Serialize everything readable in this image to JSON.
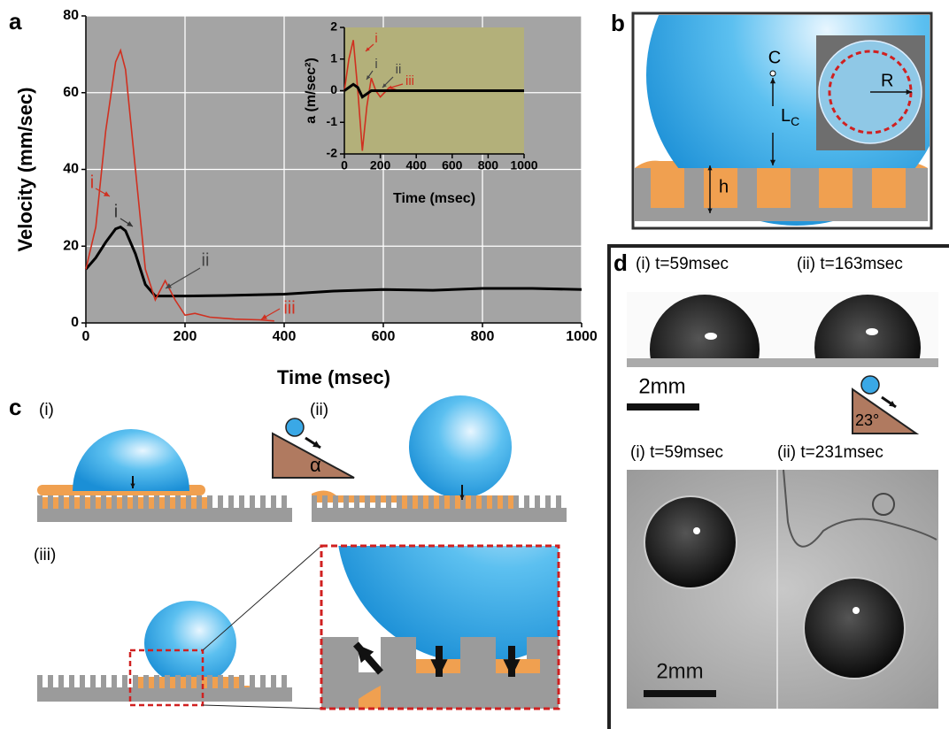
{
  "chart_data": [
    {
      "type": "line",
      "panel": "a",
      "xlabel": "Time (msec)",
      "ylabel": "Velocity (mm/sec)",
      "xlim": [
        0,
        1000
      ],
      "xticks": [
        0,
        200,
        400,
        600,
        800,
        1000
      ],
      "ylim": [
        0,
        80
      ],
      "yticks": [
        0,
        20,
        40,
        60,
        80
      ],
      "grid": true,
      "plot_background": "#a4a4a4",
      "series": [
        {
          "color": "#000000",
          "x": [
            0,
            20,
            40,
            60,
            70,
            80,
            100,
            120,
            140,
            160,
            180,
            200,
            300,
            400,
            500,
            600,
            700,
            800,
            900,
            1000
          ],
          "values": [
            14,
            17,
            21,
            24.5,
            25,
            24,
            18,
            10,
            7,
            7,
            7,
            7,
            7.2,
            7.5,
            8.3,
            8.7,
            8.5,
            9,
            9,
            8.7
          ]
        },
        {
          "color": "#d03020",
          "x": [
            0,
            20,
            40,
            60,
            70,
            80,
            100,
            120,
            140,
            160,
            180,
            200,
            220,
            250,
            300,
            350,
            380
          ],
          "values": [
            14,
            25,
            50,
            68,
            71,
            66,
            40,
            14,
            6,
            11,
            6,
            2,
            2.5,
            1.5,
            1,
            0.8,
            0.5
          ]
        }
      ],
      "annotations": [
        {
          "text": "i",
          "color": "#d03020"
        },
        {
          "text": "i",
          "color": "#333333"
        },
        {
          "text": "ii",
          "color": "#444444"
        },
        {
          "text": "iii",
          "color": "#d03020"
        }
      ]
    },
    {
      "type": "line",
      "xlabel": "Time (msec)",
      "ylabel": "a (m/sec²)",
      "xlim": [
        0,
        1000
      ],
      "xticks": [
        0,
        200,
        400,
        600,
        800,
        1000
      ],
      "ylim": [
        -2,
        2
      ],
      "yticks": [
        -2,
        -1,
        0,
        1,
        2
      ],
      "grid": false,
      "plot_background": "#b3b07a",
      "series": [
        {
          "color": "#d03020",
          "x": [
            0,
            25,
            50,
            75,
            100,
            125,
            150,
            175,
            200,
            250,
            300,
            400
          ],
          "values": [
            0,
            1,
            1.6,
            0,
            -1.9,
            -0.5,
            0.4,
            0,
            -0.2,
            0.1,
            0,
            0
          ]
        },
        {
          "color": "#000000",
          "x": [
            0,
            25,
            50,
            75,
            100,
            125,
            150,
            200,
            300,
            400,
            600,
            800,
            1000
          ],
          "values": [
            0,
            0.1,
            0.2,
            0.1,
            -0.2,
            -0.1,
            0,
            0,
            0,
            0,
            0,
            0,
            0
          ]
        }
      ],
      "annotations": [
        {
          "text": "i",
          "color": "#d03020"
        },
        {
          "text": "i",
          "color": "#444444"
        },
        {
          "text": "ii",
          "color": "#444444"
        },
        {
          "text": "iii",
          "color": "#d03020"
        }
      ]
    }
  ],
  "panels": {
    "b": {
      "label": "b",
      "center": "C",
      "length": "L",
      "length_sub": "C",
      "height": "h",
      "radius": "R"
    },
    "c": {
      "label": "c",
      "i": "(i)",
      "ii": "(ii)",
      "iii": "(iii)",
      "angle": "α"
    },
    "d": {
      "label": "d",
      "top_left": "(i) t=59msec",
      "top_right": "(ii) t=163msec",
      "scale_top": "2mm",
      "angle": "23°",
      "bottom_left": "(i) t=59msec",
      "bottom_right": "(ii) t=231msec",
      "scale_bottom": "2mm"
    }
  }
}
